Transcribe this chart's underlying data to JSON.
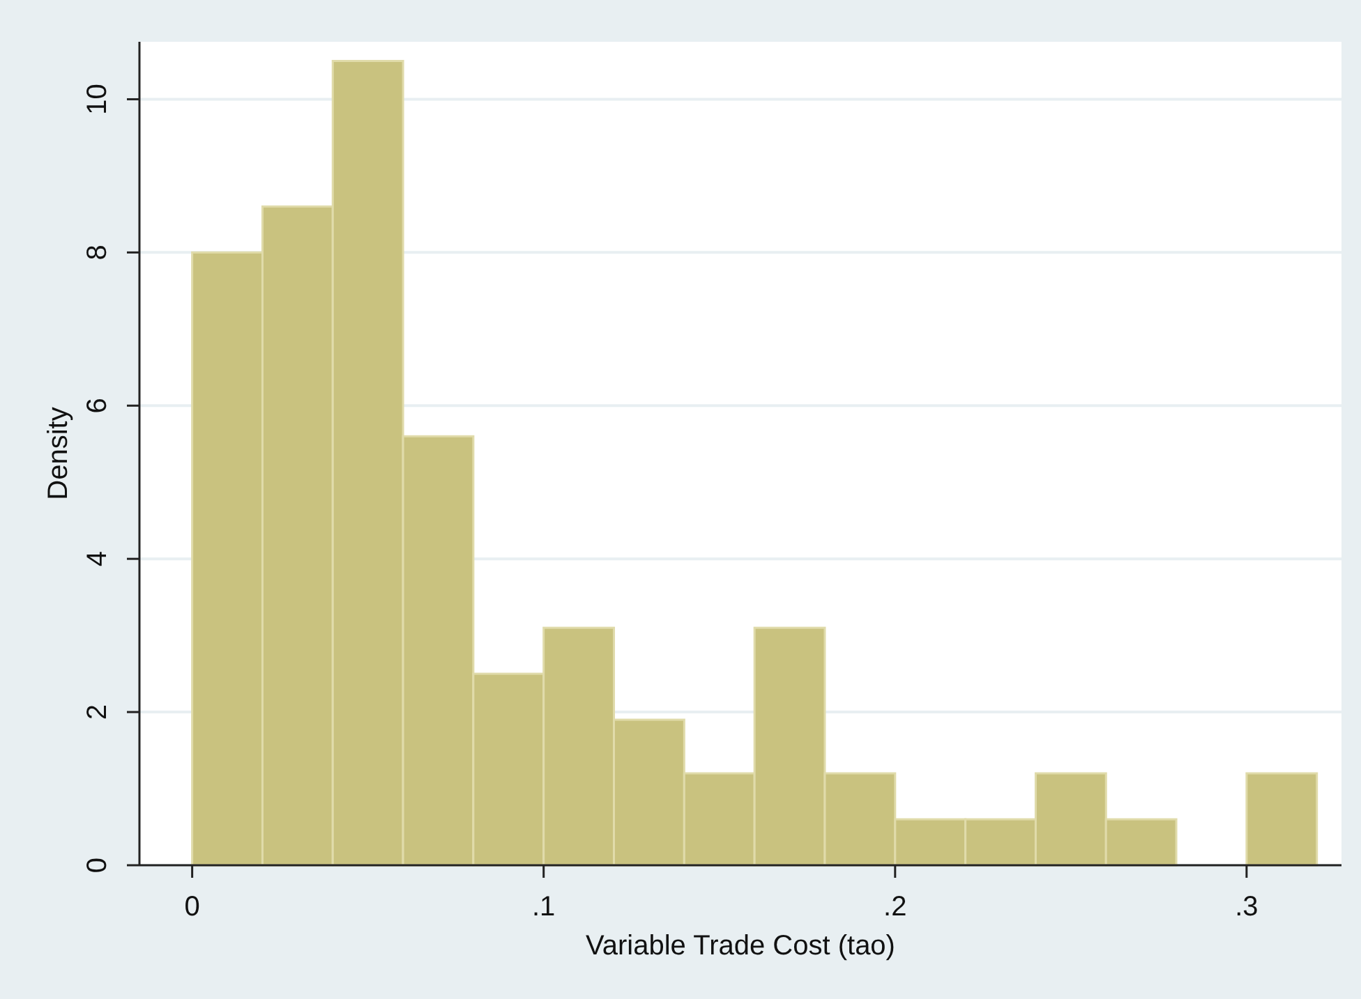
{
  "chart_data": {
    "type": "histogram",
    "xlabel": "Variable Trade Cost (tao)",
    "ylabel": "Density",
    "bins": [
      0,
      0.02,
      0.04,
      0.06,
      0.08,
      0.1,
      0.12,
      0.14,
      0.16,
      0.18,
      0.2,
      0.22,
      0.24,
      0.26,
      0.28,
      0.3,
      0.32
    ],
    "values": [
      8.0,
      8.6,
      10.5,
      5.6,
      2.5,
      3.1,
      1.9,
      1.2,
      3.1,
      1.2,
      0.6,
      0.6,
      1.2,
      0.6,
      0,
      1.2
    ],
    "color": "#c9c27f",
    "xlim": [
      -0.015,
      0.327
    ],
    "xticks": [
      {
        "value": 0,
        "label": "0"
      },
      {
        "value": 0.1,
        "label": ".1"
      },
      {
        "value": 0.2,
        "label": ".2"
      },
      {
        "value": 0.3,
        "label": ".3"
      }
    ],
    "ylim": [
      0,
      10.75
    ],
    "yticks": [
      0,
      2,
      4,
      6,
      8,
      10
    ],
    "grid": "y"
  }
}
